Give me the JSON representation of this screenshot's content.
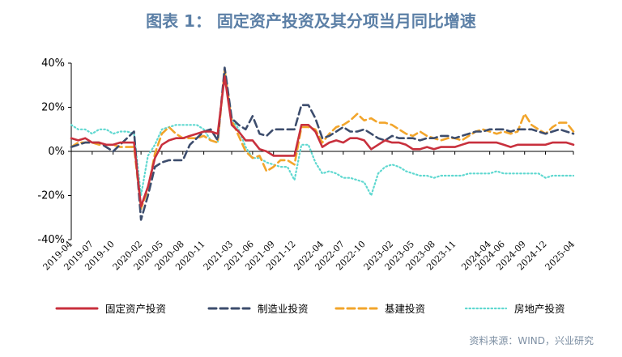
{
  "figure": {
    "title": "图表 1：  固定资产投资及其分项当月同比增速",
    "source": "资料来源：WIND，兴业研究"
  },
  "colors": {
    "固定资产投资": "#c8303d",
    "制造业投资": "#3d4d6d",
    "基建投资": "#f2a52b",
    "房地产投资": "#5fd8d0"
  },
  "chart_data": {
    "type": "line",
    "ylim": [
      -40,
      40
    ],
    "yticks": [
      -40,
      -20,
      0,
      20,
      40
    ],
    "ytick_labels": [
      "-40%",
      "-20%",
      "0%",
      "20%",
      "40%"
    ],
    "xtick_labels": [
      "2019-04",
      "2019-07",
      "2019-10",
      "2020-02",
      "2020-05",
      "2020-08",
      "2020-11",
      "2021-03",
      "2021-06",
      "2021-09",
      "2021-12",
      "2022-04",
      "2022-07",
      "2022-10",
      "2023-02",
      "2023-05",
      "2023-08",
      "2023-11",
      "2024-04",
      "2024-06",
      "2024-09",
      "2024-12",
      "2025-04"
    ],
    "x": [
      "2019-04",
      "2019-05",
      "2019-06",
      "2019-07",
      "2019-08",
      "2019-09",
      "2019-10",
      "2019-11",
      "2019-12",
      "2020-01",
      "2020-02",
      "2020-03",
      "2020-04",
      "2020-05",
      "2020-06",
      "2020-07",
      "2020-08",
      "2020-09",
      "2020-10",
      "2020-11",
      "2020-12",
      "2021-01",
      "2021-02",
      "2021-03",
      "2021-04",
      "2021-05",
      "2021-06",
      "2021-07",
      "2021-08",
      "2021-09",
      "2021-10",
      "2021-11",
      "2021-12",
      "2022-01",
      "2022-02",
      "2022-03",
      "2022-04",
      "2022-05",
      "2022-06",
      "2022-07",
      "2022-08",
      "2022-09",
      "2022-10",
      "2022-11",
      "2022-12",
      "2023-01",
      "2023-02",
      "2023-03",
      "2023-04",
      "2023-05",
      "2023-06",
      "2023-07",
      "2023-08",
      "2023-09",
      "2023-10",
      "2023-11",
      "2023-12",
      "2024-01",
      "2024-02",
      "2024-03",
      "2024-04",
      "2024-05",
      "2024-06",
      "2024-07",
      "2024-08",
      "2024-09",
      "2024-10",
      "2024-11",
      "2024-12",
      "2025-01",
      "2025-02",
      "2025-03",
      "2025-04"
    ],
    "series": [
      {
        "name": "固定资产投资",
        "style": "solid",
        "values": [
          6,
          5,
          6,
          4,
          4,
          3,
          3,
          4,
          4,
          4,
          -25,
          -16,
          -3,
          3,
          5,
          6,
          6,
          7,
          8,
          9,
          9,
          8,
          34,
          12,
          9,
          5,
          5,
          1,
          0,
          -2,
          -2,
          -2,
          -2,
          12,
          12,
          9,
          2,
          4,
          5,
          4,
          6,
          6,
          5,
          1,
          3,
          5,
          4,
          4,
          3,
          1,
          1,
          2,
          1,
          2,
          2,
          2,
          3,
          4,
          4,
          4,
          4,
          4,
          3,
          2,
          3,
          3,
          3,
          3,
          3,
          4,
          4,
          4,
          3
        ]
      },
      {
        "name": "制造业投资",
        "style": "dashed",
        "values": [
          2,
          3,
          4,
          4,
          4,
          2,
          0,
          3,
          6,
          9,
          -31,
          -20,
          -7,
          -5,
          -4,
          -4,
          -4,
          3,
          6,
          9,
          10,
          5,
          38,
          15,
          12,
          10,
          16,
          8,
          7,
          10,
          10,
          10,
          10,
          21,
          21,
          15,
          6,
          7,
          9,
          11,
          9,
          9,
          10,
          8,
          6,
          5,
          7,
          6,
          6,
          6,
          5,
          6,
          6,
          7,
          7,
          6,
          7,
          8,
          9,
          9,
          10,
          10,
          10,
          9,
          10,
          10,
          10,
          9,
          8,
          9,
          10,
          9,
          8
        ]
      },
      {
        "name": "基建投资",
        "style": "dashed",
        "values": [
          2,
          4,
          4,
          4,
          3,
          3,
          3,
          2,
          2,
          2,
          -26,
          -17,
          -1,
          8,
          11,
          8,
          6,
          6,
          6,
          7,
          5,
          4,
          37,
          14,
          7,
          0,
          -3,
          -2,
          -9,
          -7,
          -4,
          -4,
          -6,
          11,
          11,
          10,
          4,
          8,
          11,
          12,
          14,
          17,
          14,
          15,
          13,
          13,
          12,
          10,
          8,
          7,
          9,
          7,
          6,
          5,
          6,
          6,
          5,
          7,
          9,
          10,
          9,
          8,
          9,
          8,
          9,
          17,
          12,
          10,
          8,
          11,
          13,
          13,
          9
        ]
      },
      {
        "name": "房地产投资",
        "style": "dotted",
        "values": [
          12,
          10,
          10,
          8,
          10,
          10,
          8,
          9,
          9,
          8,
          -20,
          -2,
          3,
          10,
          11,
          12,
          12,
          12,
          12,
          10,
          5,
          4,
          37,
          15,
          10,
          2,
          -3,
          -3,
          -5,
          -6,
          -7,
          -7,
          -13,
          3,
          3,
          -5,
          -10,
          -9,
          -10,
          -12,
          -12,
          -13,
          -14,
          -20,
          -10,
          -7,
          -6,
          -7,
          -9,
          -10,
          -11,
          -11,
          -12,
          -11,
          -11,
          -11,
          -11,
          -10,
          -10,
          -10,
          -10,
          -9,
          -10,
          -10,
          -10,
          -10,
          -10,
          -10,
          -12,
          -11,
          -11,
          -11,
          -11
        ]
      }
    ]
  }
}
